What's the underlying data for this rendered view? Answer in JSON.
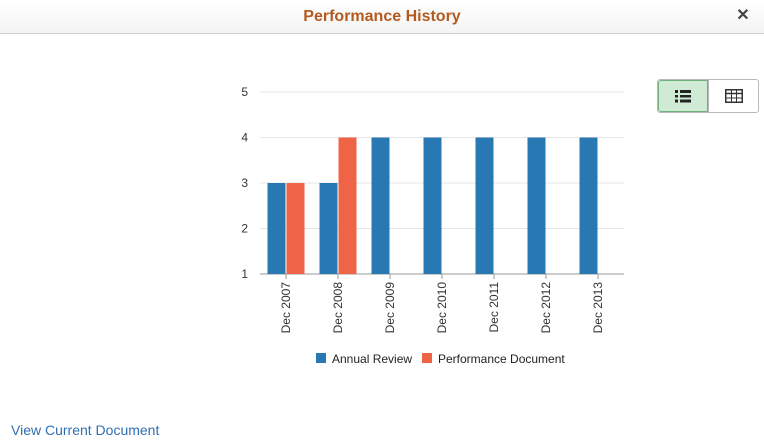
{
  "header": {
    "title": "Performance History",
    "close_label": "✕"
  },
  "view_toggle": {
    "chart_icon": "list-icon",
    "grid_icon": "grid-icon",
    "active": "chart"
  },
  "chart_data": {
    "type": "bar",
    "categories": [
      "Dec 2007",
      "Dec 2008",
      "Dec 2009",
      "Dec 2010",
      "Dec 2011",
      "Dec 2012",
      "Dec 2013"
    ],
    "series": [
      {
        "name": "Annual Review",
        "color": "#2878b4",
        "values": [
          3,
          3,
          4,
          4,
          4,
          4,
          4
        ]
      },
      {
        "name": "Performance Document",
        "color": "#ef6347",
        "values": [
          3,
          4,
          null,
          null,
          null,
          null,
          null
        ]
      }
    ],
    "y_ticks": [
      "1",
      "2",
      "3",
      "4",
      "5"
    ],
    "ylim": [
      1,
      5
    ],
    "grid": true,
    "legend": "bottom"
  },
  "footer": {
    "link_label": "View Current Document"
  }
}
